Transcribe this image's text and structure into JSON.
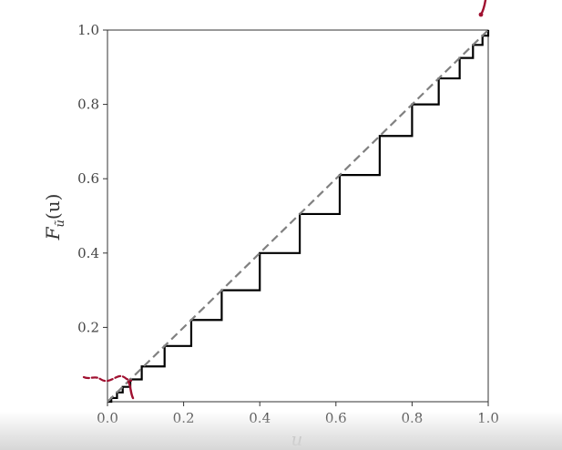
{
  "chart_data": {
    "type": "line",
    "title": "",
    "xlabel": "u",
    "ylabel_main": "F",
    "ylabel_sub": "ũ",
    "ylabel_arg": "(u)",
    "xlim": [
      0.0,
      1.0
    ],
    "ylim": [
      0.0,
      1.0
    ],
    "x_ticks": [
      0.0,
      0.2,
      0.4,
      0.6,
      0.8,
      1.0
    ],
    "x_tick_labels": [
      "0.0",
      "0.2",
      "0.4",
      "0.6",
      "0.8",
      "1.0"
    ],
    "y_ticks": [
      0.2,
      0.4,
      0.6,
      0.8,
      1.0
    ],
    "y_tick_labels": [
      "0.2",
      "0.4",
      "0.6",
      "0.8",
      "1.0"
    ],
    "grid": false,
    "series": [
      {
        "style": "step",
        "color": "#000000",
        "x": [
          0.0,
          0.01,
          0.025,
          0.04,
          0.06,
          0.09,
          0.15,
          0.22,
          0.3,
          0.4,
          0.505,
          0.61,
          0.715,
          0.8,
          0.87,
          0.925,
          0.96,
          0.985,
          1.0
        ],
        "y": [
          0.0,
          0.01,
          0.025,
          0.04,
          0.06,
          0.095,
          0.15,
          0.22,
          0.3,
          0.4,
          0.505,
          0.61,
          0.715,
          0.8,
          0.87,
          0.925,
          0.96,
          0.985,
          1.0
        ]
      },
      {
        "style": "dashed",
        "color": "#808080",
        "x": [
          0.0,
          1.0
        ],
        "y": [
          0.0,
          1.0
        ]
      }
    ],
    "annotation_color": "#a01030"
  }
}
